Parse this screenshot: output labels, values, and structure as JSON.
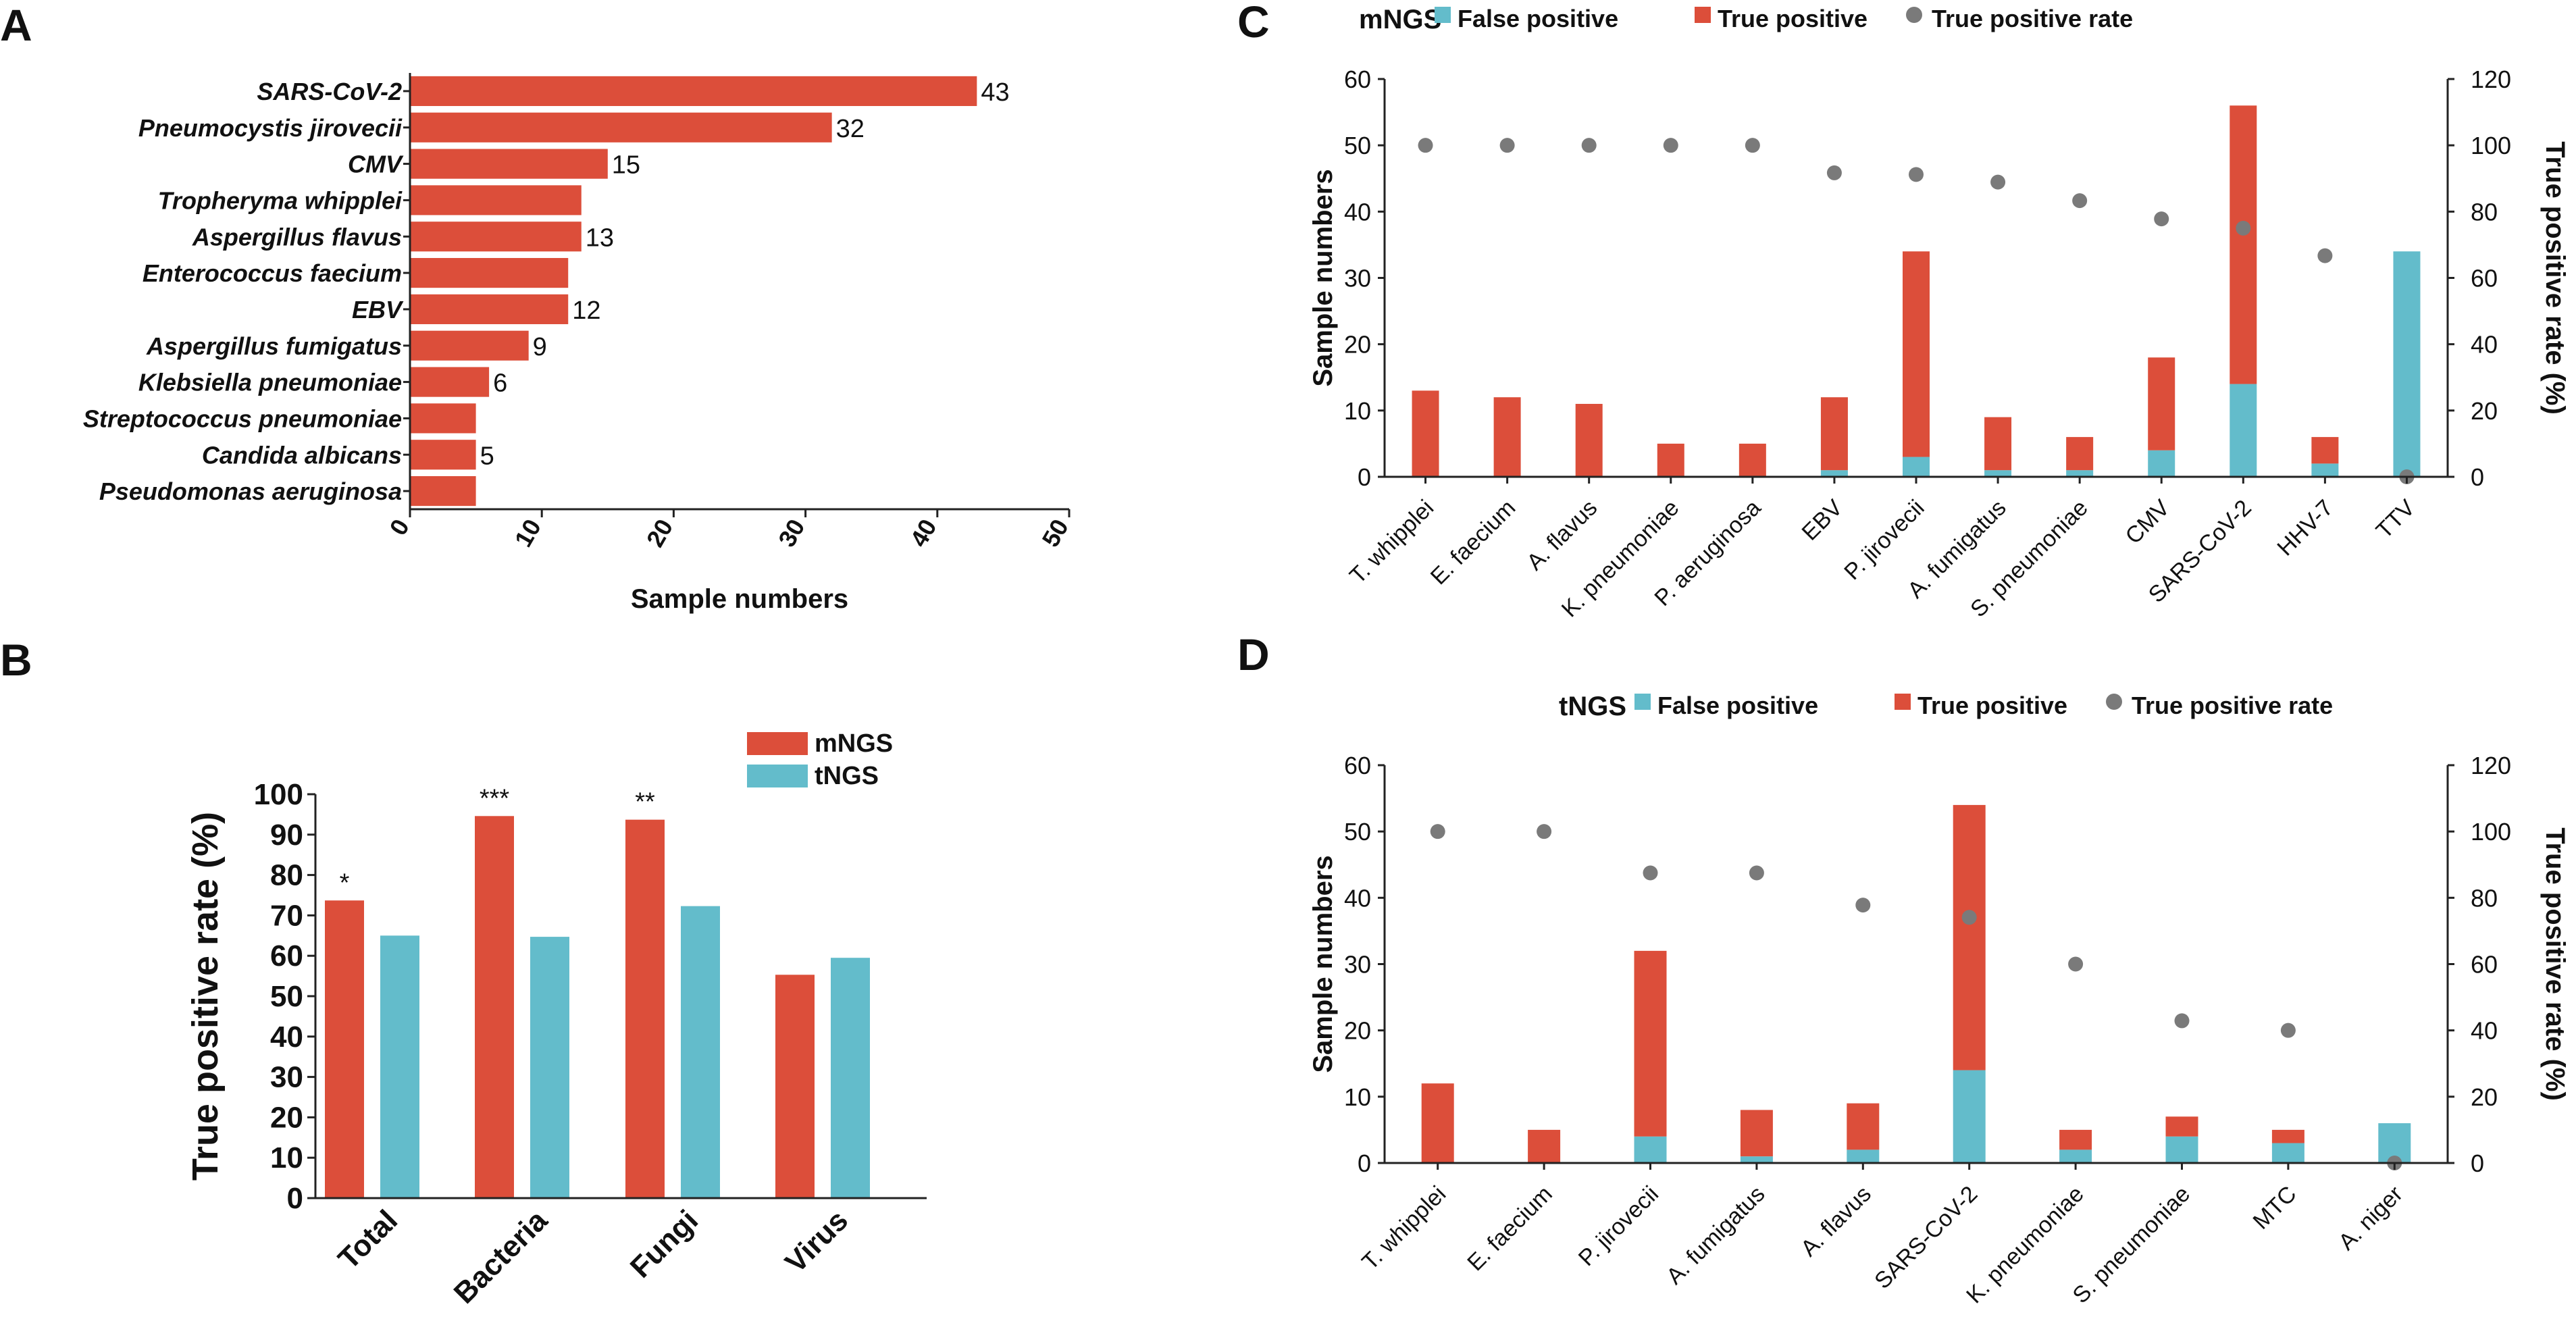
{
  "panels": {
    "A": "A",
    "B": "B",
    "C": "C",
    "D": "D"
  },
  "colors": {
    "red": "#dc4e3a",
    "teal": "#63bccb",
    "gray": "#7a7a7a"
  },
  "chart_data": [
    {
      "id": "A",
      "type": "bar",
      "orientation": "horizontal",
      "categories": [
        "SARS-CoV-2",
        "Pneumocystis jirovecii",
        "CMV",
        "Tropheryma whipplei",
        "Aspergillus flavus",
        "Enterococcus faecium",
        "EBV",
        "Aspergillus fumigatus",
        "Klebsiella pneumoniae",
        "Streptococcus pneumoniae",
        "Candida albicans",
        "Pseudomonas aeruginosa"
      ],
      "values": [
        43,
        32,
        15,
        13,
        13,
        12,
        12,
        9,
        6,
        5,
        5,
        5
      ],
      "value_labels": [
        "43",
        "32",
        "15",
        "",
        "13",
        "",
        "12",
        "9",
        "6",
        "",
        "5",
        ""
      ],
      "xlabel": "Sample numbers",
      "xlim": [
        0,
        50
      ],
      "xticks": [
        "0",
        "10",
        "20",
        "30",
        "40",
        "50"
      ]
    },
    {
      "id": "B",
      "type": "bar",
      "categories": [
        "Total",
        "Bacteria",
        "Fungi",
        "Virus"
      ],
      "series": [
        {
          "name": "mNGS",
          "values": [
            73.7,
            94.6,
            93.7,
            55.3
          ]
        },
        {
          "name": "tNGS",
          "values": [
            65.0,
            64.7,
            72.3,
            59.5
          ]
        }
      ],
      "significance": [
        "*",
        "***",
        "**",
        ""
      ],
      "ylabel": "True positive rate (%)",
      "ylim": [
        0,
        100
      ],
      "yticks": [
        "0",
        "10",
        "20",
        "30",
        "40",
        "50",
        "60",
        "70",
        "80",
        "90",
        "100"
      ]
    },
    {
      "id": "C",
      "type": "bar",
      "stacked": true,
      "legend_title": "mNGS",
      "categories": [
        "T. whipplei",
        "E. faecium",
        "A. flavus",
        "K. pneumoniae",
        "P. aeruginosa",
        "EBV",
        "P. jirovecii",
        "A. fumigatus",
        "S. pneumoniae",
        "CMV",
        "SARS-CoV-2",
        "HHV-7",
        "TTV"
      ],
      "series": [
        {
          "name": "False positive",
          "values": [
            0,
            0,
            0,
            0,
            0,
            1,
            3,
            1,
            1,
            4,
            14,
            2,
            34
          ]
        },
        {
          "name": "True positive",
          "values": [
            13,
            12,
            11,
            5,
            5,
            11,
            31,
            8,
            5,
            14,
            42,
            4,
            0
          ]
        }
      ],
      "rate_series": {
        "name": "True positive rate",
        "values": [
          100,
          100,
          100,
          100,
          100,
          91.7,
          91.2,
          88.9,
          83.3,
          77.8,
          75,
          66.7,
          0
        ]
      },
      "ylabel": "Sample numbers",
      "ylim": [
        0,
        60
      ],
      "yticks": [
        "0",
        "10",
        "20",
        "30",
        "40",
        "50",
        "60"
      ],
      "y2label": "True positive rate (%)",
      "y2lim": [
        0,
        120
      ],
      "y2ticks": [
        "0",
        "20",
        "40",
        "60",
        "80",
        "100",
        "120"
      ]
    },
    {
      "id": "D",
      "type": "bar",
      "stacked": true,
      "legend_title": "tNGS",
      "categories": [
        "T. whipplei",
        "E. faecium",
        "P. jirovecii",
        "A. fumigatus",
        "A. flavus",
        "SARS-CoV-2",
        "K. pneumoniae",
        "S. pneumoniae",
        "MTC",
        "A. niger"
      ],
      "series": [
        {
          "name": "False positive",
          "values": [
            0,
            0,
            4,
            1,
            2,
            14,
            2,
            4,
            3,
            6
          ]
        },
        {
          "name": "True positive",
          "values": [
            12,
            5,
            28,
            7,
            7,
            40,
            3,
            3,
            2,
            0
          ]
        }
      ],
      "rate_series": {
        "name": "True positive rate",
        "values": [
          100,
          100,
          87.5,
          87.5,
          77.8,
          74.1,
          60,
          42.9,
          40,
          0
        ]
      },
      "ylabel": "Sample numbers",
      "ylim": [
        0,
        60
      ],
      "yticks": [
        "0",
        "10",
        "20",
        "30",
        "40",
        "50",
        "60"
      ],
      "y2label": "True positive rate (%)",
      "y2lim": [
        0,
        120
      ],
      "y2ticks": [
        "0",
        "20",
        "40",
        "60",
        "80",
        "100",
        "120"
      ]
    }
  ]
}
